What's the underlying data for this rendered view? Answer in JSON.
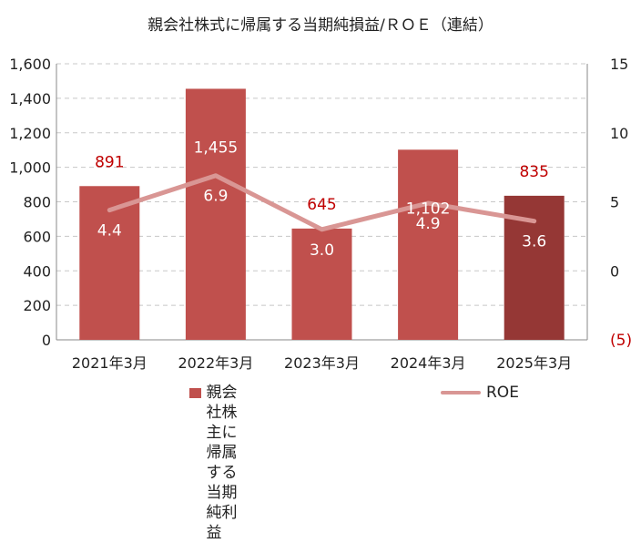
{
  "chart_data": {
    "type": "bar",
    "title": "親会社株式に帰属する当期純損益/ＲＯＥ（連結）",
    "categories": [
      "2021年3月",
      "2022年3月",
      "2023年3月",
      "2024年3月",
      "2025年3月"
    ],
    "series": [
      {
        "name": "親会社株主に帰属する\n当期純利益",
        "type": "bar",
        "axis": "left",
        "values": [
          891,
          1455,
          645,
          1102,
          835
        ],
        "labels": [
          "891",
          "1,455",
          "645",
          "1,102",
          "835"
        ],
        "colors": [
          "#c0504d",
          "#c0504d",
          "#c0504d",
          "#c0504d",
          "#953735"
        ]
      },
      {
        "name": "ROE",
        "type": "line",
        "axis": "right",
        "values": [
          4.4,
          6.9,
          3.0,
          4.9,
          3.6
        ],
        "labels": [
          "4.4",
          "6.9",
          "3.0",
          "4.9",
          "3.6"
        ],
        "color": "#d99694"
      }
    ],
    "y_left": {
      "range": [
        0,
        1600
      ],
      "ticks": [
        "0",
        "200",
        "400",
        "600",
        "800",
        "1,000",
        "1,200",
        "1,400",
        "1,600"
      ]
    },
    "y_right": {
      "range": [
        -5,
        15
      ],
      "ticks": [
        "(5)",
        "0",
        "5",
        "10",
        "15"
      ]
    },
    "grid": true,
    "legend_position": "bottom"
  }
}
